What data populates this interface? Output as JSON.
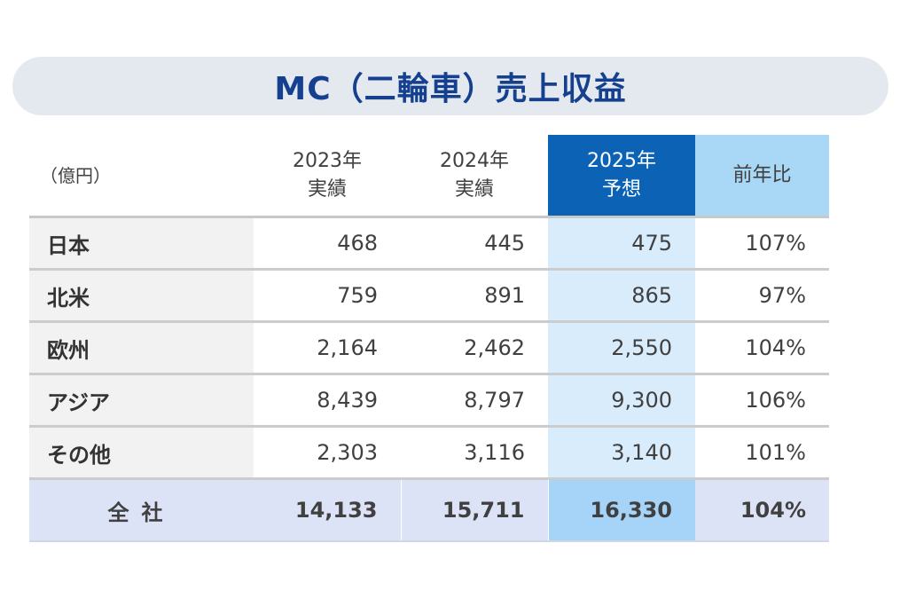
{
  "title": "MC（二輪車）売上収益",
  "table": {
    "unit_label": "（億円）",
    "headers": {
      "y2023": [
        "2023年",
        "実績"
      ],
      "y2024": [
        "2024年",
        "実績"
      ],
      "y2025": [
        "2025年",
        "予想"
      ],
      "ratio": "前年比"
    },
    "rows": [
      {
        "region": "日本",
        "y2023": "468",
        "y2024": "445",
        "y2025": "475",
        "ratio": "107%"
      },
      {
        "region": "北米",
        "y2023": "759",
        "y2024": "891",
        "y2025": "865",
        "ratio": "97%"
      },
      {
        "region": "欧州",
        "y2023": "2,164",
        "y2024": "2,462",
        "y2025": "2,550",
        "ratio": "104%"
      },
      {
        "region": "アジア",
        "y2023": "8,439",
        "y2024": "8,797",
        "y2025": "9,300",
        "ratio": "106%"
      },
      {
        "region": "その他",
        "y2023": "2,303",
        "y2024": "3,116",
        "y2025": "3,140",
        "ratio": "101%"
      }
    ],
    "total": {
      "region": "全社",
      "y2023": "14,133",
      "y2024": "15,711",
      "y2025": "16,330",
      "ratio": "104%"
    }
  },
  "colors": {
    "title_text": "#153f8f",
    "title_banner": "#e4e9f0",
    "header_2025": "#0c63b5",
    "header_ratio": "#a9d7f6",
    "cell_2025": "#d9ecfc",
    "total_row": "#dde3f6",
    "total_2025": "#a6d3f8"
  }
}
